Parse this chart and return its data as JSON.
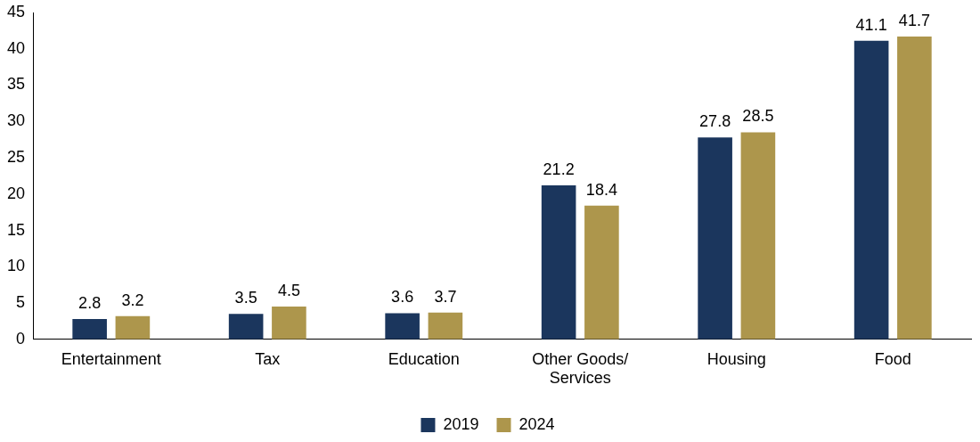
{
  "chart_data": {
    "type": "bar",
    "categories": [
      "Entertainment",
      "Tax",
      "Education",
      "Other Goods/ Services",
      "Housing",
      "Food"
    ],
    "series": [
      {
        "name": "2019",
        "color": "#1b365d",
        "values": [
          2.8,
          3.5,
          3.6,
          21.2,
          27.8,
          41.1
        ]
      },
      {
        "name": "2024",
        "color": "#ad964c",
        "values": [
          3.2,
          4.5,
          3.7,
          18.4,
          28.5,
          41.7
        ]
      }
    ],
    "ylim": [
      0,
      45
    ],
    "yticks": [
      0,
      5,
      10,
      15,
      20,
      25,
      30,
      35,
      40,
      45
    ],
    "grid": false,
    "legend": "bottom",
    "data_labels": true
  }
}
